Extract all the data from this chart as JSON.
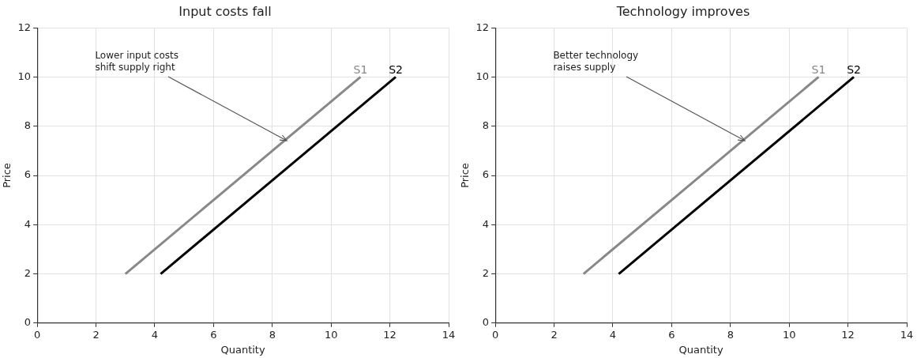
{
  "chart_data": [
    {
      "type": "line",
      "title": "Input costs fall",
      "xlabel": "Quantity",
      "ylabel": "Price",
      "xlim": [
        0,
        14
      ],
      "xticks": [
        0,
        2,
        4,
        6,
        8,
        10,
        12,
        14
      ],
      "ylim": [
        0,
        12
      ],
      "yticks": [
        0,
        2,
        4,
        6,
        8,
        10,
        12
      ],
      "grid": true,
      "legend": false,
      "marker": "none",
      "line_style": "solid",
      "series": [
        {
          "name": "S1",
          "color": "#888888",
          "x": [
            3,
            11
          ],
          "values": [
            2,
            10
          ]
        },
        {
          "name": "S2",
          "color": "#000000",
          "x": [
            4.2,
            12.2
          ],
          "values": [
            2,
            10
          ]
        }
      ],
      "annotations": [
        {
          "text": "Lower input costs\nshift supply right",
          "x": 8.5,
          "y": 7.4
        }
      ]
    },
    {
      "type": "line",
      "title": "Technology improves",
      "xlabel": "Quantity",
      "ylabel": "Price",
      "xlim": [
        0,
        14
      ],
      "xticks": [
        0,
        2,
        4,
        6,
        8,
        10,
        12,
        14
      ],
      "ylim": [
        0,
        12
      ],
      "yticks": [
        0,
        2,
        4,
        6,
        8,
        10,
        12
      ],
      "grid": true,
      "legend": false,
      "marker": "none",
      "line_style": "solid",
      "series": [
        {
          "name": "S1",
          "color": "#888888",
          "x": [
            3,
            11
          ],
          "values": [
            2,
            10
          ]
        },
        {
          "name": "S2",
          "color": "#000000",
          "x": [
            4.2,
            12.2
          ],
          "values": [
            2,
            10
          ]
        }
      ],
      "annotations": [
        {
          "text": "Better technology\nraises supply",
          "x": 8.5,
          "y": 7.4
        }
      ]
    }
  ]
}
